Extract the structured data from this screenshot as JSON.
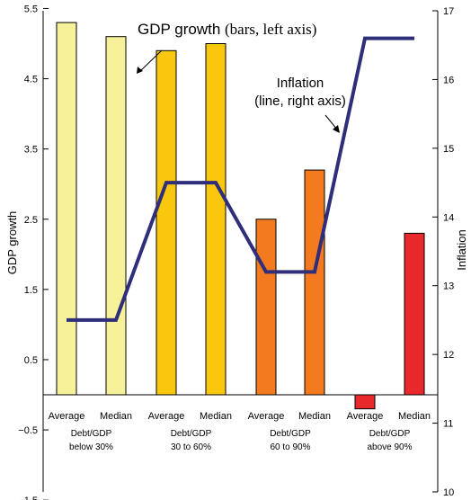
{
  "chart_data": {
    "type": "bar",
    "categories": [
      "Average",
      "Median",
      "Average",
      "Median",
      "Average",
      "Median",
      "Average",
      "Median"
    ],
    "groups": [
      "Debt/GDP below 30%",
      "Debt/GDP 30 to 60%",
      "Debt/GDP 60 to 90%",
      "Debt/GDP above 90%"
    ],
    "group_lines": [
      [
        "Debt/GDP",
        "below 30%"
      ],
      [
        "Debt/GDP",
        "30 to 60%"
      ],
      [
        "Debt/GDP",
        "60 to 90%"
      ],
      [
        "Debt/GDP",
        "above 90%"
      ]
    ],
    "series": [
      {
        "type": "bar",
        "axis": "left",
        "values": [
          5.3,
          5.1,
          4.9,
          5.0,
          2.5,
          3.2,
          -0.2,
          2.3
        ],
        "colors": [
          "#f7f19a",
          "#f7f19a",
          "#f9c80e",
          "#f9c80e",
          "#f47a20",
          "#f47a20",
          "#e8282b",
          "#e8282b"
        ]
      },
      {
        "type": "line",
        "axis": "right",
        "values": [
          12.5,
          12.5,
          14.5,
          14.5,
          13.2,
          13.2,
          16.6,
          16.6
        ],
        "color": "#2e2e7a"
      }
    ],
    "ylabel": "GDP growth",
    "ylabel_right": "Inflation",
    "ylim": [
      -1.5,
      6.2
    ],
    "ylim_right": [
      10,
      17
    ],
    "yticks": [
      "5.5",
      "4.5",
      "3.5",
      "2.5",
      "1.5",
      "0.5",
      "−0.5",
      "−1.5"
    ],
    "ytick_values": [
      5.5,
      4.5,
      3.5,
      2.5,
      1.5,
      0.5,
      -0.5,
      -1.5
    ],
    "yticks_right": [
      "17",
      "16",
      "15",
      "14",
      "13",
      "12",
      "11",
      "10"
    ],
    "ytick_values_right": [
      17,
      16,
      15,
      14,
      13,
      12,
      11,
      10
    ],
    "annotations": [
      {
        "text_main": "GDP growth",
        "text_paren": "(bars, left axis)"
      },
      {
        "lines": [
          "Inflation",
          "(line, right axis)"
        ]
      }
    ],
    "grid": false
  }
}
